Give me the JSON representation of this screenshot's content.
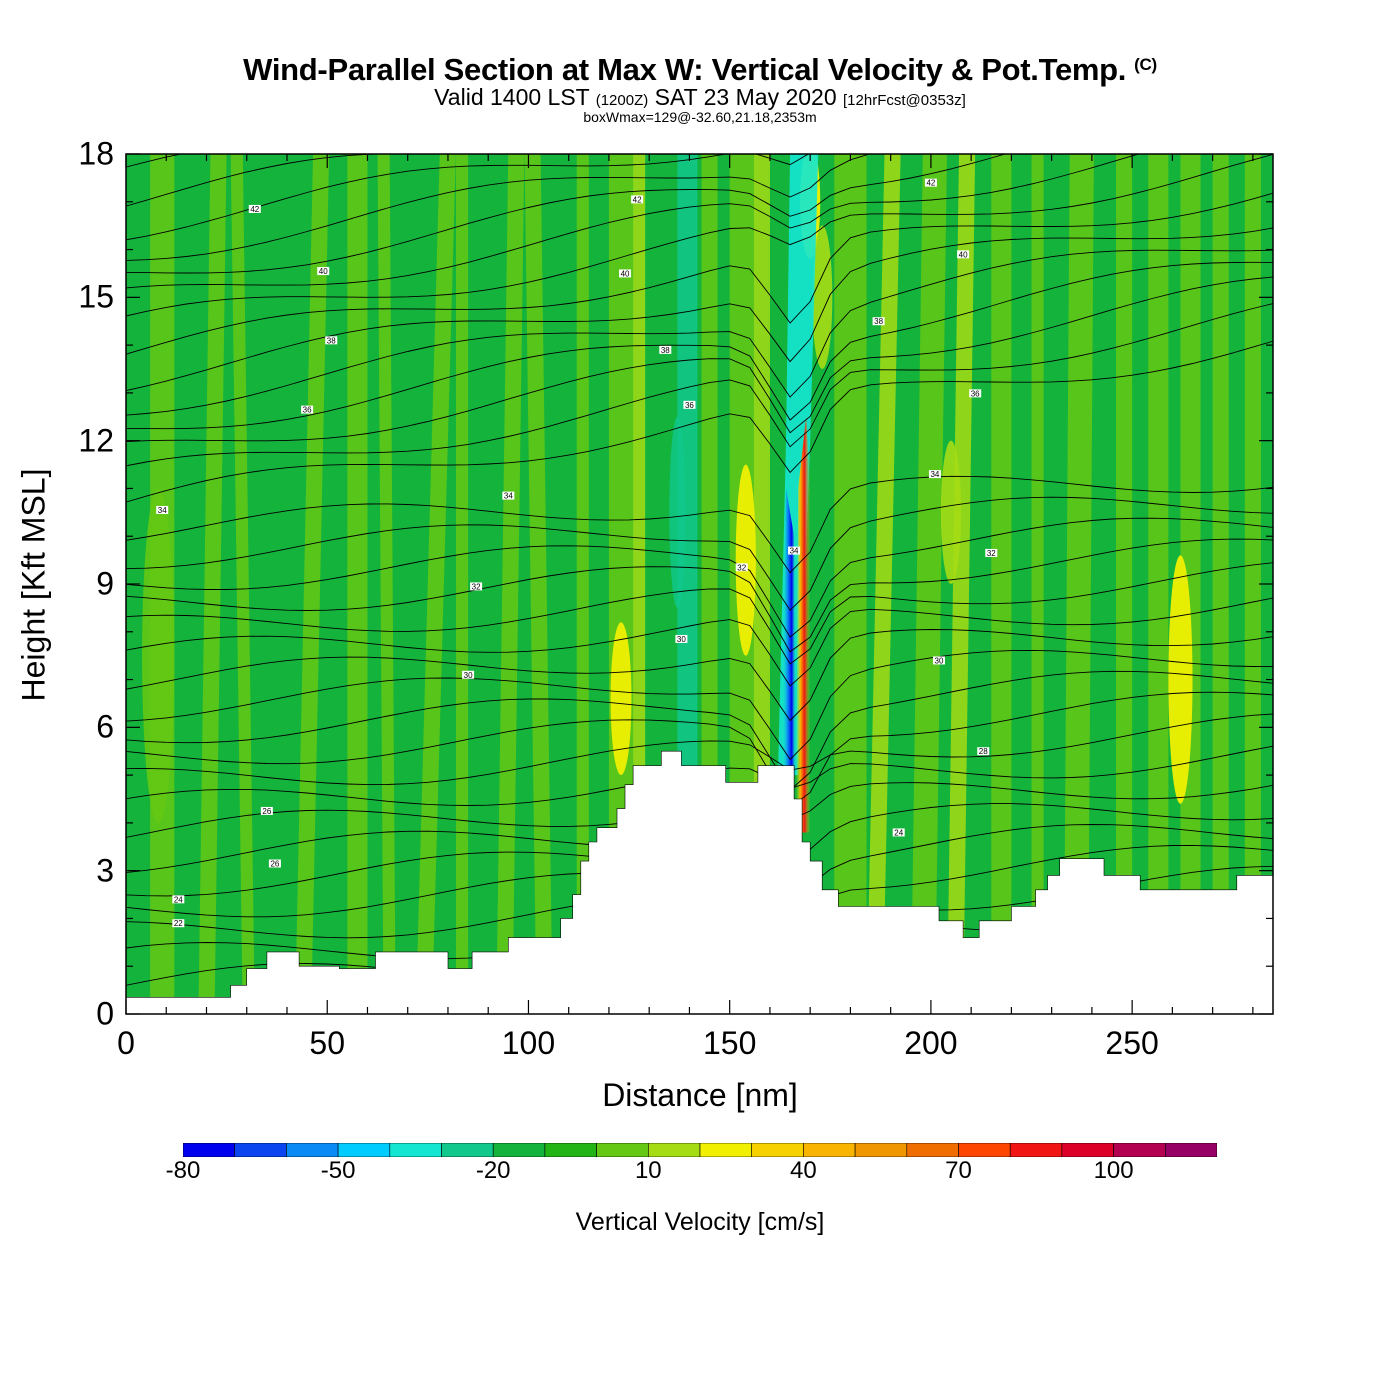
{
  "chart_data": {
    "type": "heatmap",
    "title": "Wind-Parallel Section at Max W: Vertical Velocity & Pot.Temp.",
    "title_mark": "(C)",
    "subtitle_parts": [
      "Valid 1400 LST",
      "(1200Z)",
      "SAT 23 May 2020",
      "[12hrFcst@0353z]"
    ],
    "box_info": "boxWmax=129@-32.60,21.18,2353m",
    "xlabel": "Distance [nm]",
    "ylabel": "Height [Kft MSL]",
    "xlim": [
      0,
      285
    ],
    "ylim": [
      0,
      18
    ],
    "xticks": [
      0,
      50,
      100,
      150,
      200,
      250
    ],
    "yticks": [
      0,
      3,
      6,
      9,
      12,
      15,
      18
    ],
    "colorbar": {
      "label": "Vertical Velocity [cm/s]",
      "levels": [
        -80,
        -70,
        -60,
        -50,
        -40,
        -30,
        -20,
        -10,
        0,
        10,
        20,
        30,
        40,
        50,
        60,
        70,
        80,
        90,
        100,
        110,
        120
      ],
      "colors": [
        "#0000ee",
        "#0b45f0",
        "#0a8af5",
        "#00ccff",
        "#14e6d2",
        "#10c88c",
        "#14b43c",
        "#22b414",
        "#64c814",
        "#a5dc14",
        "#f0f000",
        "#f8d200",
        "#f8b400",
        "#f09600",
        "#f06e00",
        "#ff4600",
        "#f01414",
        "#dc0028",
        "#b40050",
        "#960064"
      ],
      "tick_labels": [
        "-80",
        "-50",
        "-20",
        "10",
        "40",
        "70",
        "100"
      ],
      "tick_values": [
        -80,
        -50,
        -20,
        10,
        40,
        70,
        100
      ]
    },
    "terrain_kft": [
      [
        0,
        0.35
      ],
      [
        26,
        0.35
      ],
      [
        26,
        0.6
      ],
      [
        30,
        0.6
      ],
      [
        30,
        0.95
      ],
      [
        35,
        0.95
      ],
      [
        35,
        1.3
      ],
      [
        43,
        1.3
      ],
      [
        43,
        1.0
      ],
      [
        53,
        1.0
      ],
      [
        53,
        0.95
      ],
      [
        62,
        0.95
      ],
      [
        62,
        1.3
      ],
      [
        80,
        1.3
      ],
      [
        80,
        0.95
      ],
      [
        86,
        0.95
      ],
      [
        86,
        1.3
      ],
      [
        95,
        1.3
      ],
      [
        95,
        1.6
      ],
      [
        108,
        1.6
      ],
      [
        108,
        2.0
      ],
      [
        111,
        2.0
      ],
      [
        111,
        2.5
      ],
      [
        113,
        2.5
      ],
      [
        113,
        3.2
      ],
      [
        115,
        3.2
      ],
      [
        115,
        3.6
      ],
      [
        117,
        3.6
      ],
      [
        117,
        3.9
      ],
      [
        122,
        3.9
      ],
      [
        122,
        4.3
      ],
      [
        124,
        4.3
      ],
      [
        124,
        4.8
      ],
      [
        126,
        4.8
      ],
      [
        126,
        5.2
      ],
      [
        133,
        5.2
      ],
      [
        133,
        5.5
      ],
      [
        138,
        5.5
      ],
      [
        138,
        5.2
      ],
      [
        149,
        5.2
      ],
      [
        149,
        4.85
      ],
      [
        157,
        4.85
      ],
      [
        157,
        5.2
      ],
      [
        166,
        5.2
      ],
      [
        166,
        4.5
      ],
      [
        168,
        4.5
      ],
      [
        168,
        3.6
      ],
      [
        170,
        3.6
      ],
      [
        170,
        3.2
      ],
      [
        173,
        3.2
      ],
      [
        173,
        2.6
      ],
      [
        177,
        2.6
      ],
      [
        177,
        2.25
      ],
      [
        202,
        2.25
      ],
      [
        202,
        1.95
      ],
      [
        208,
        1.95
      ],
      [
        208,
        1.6
      ],
      [
        212,
        1.6
      ],
      [
        212,
        1.95
      ],
      [
        220,
        1.95
      ],
      [
        220,
        2.25
      ],
      [
        226,
        2.25
      ],
      [
        226,
        2.6
      ],
      [
        229,
        2.6
      ],
      [
        229,
        2.9
      ],
      [
        232,
        2.9
      ],
      [
        232,
        3.25
      ],
      [
        243,
        3.25
      ],
      [
        243,
        2.9
      ],
      [
        252,
        2.9
      ],
      [
        252,
        2.6
      ],
      [
        276,
        2.6
      ],
      [
        276,
        2.9
      ],
      [
        285,
        2.9
      ]
    ],
    "contour_labels": [
      {
        "x": 32,
        "y": 16.85,
        "text": "42"
      },
      {
        "x": 49,
        "y": 15.55,
        "text": "40"
      },
      {
        "x": 51,
        "y": 14.1,
        "text": "38"
      },
      {
        "x": 45,
        "y": 12.65,
        "text": "36"
      },
      {
        "x": 9,
        "y": 10.55,
        "text": "34"
      },
      {
        "x": 95,
        "y": 10.85,
        "text": "34"
      },
      {
        "x": 87,
        "y": 8.95,
        "text": "32"
      },
      {
        "x": 85,
        "y": 7.1,
        "text": "30"
      },
      {
        "x": 35,
        "y": 4.25,
        "text": "26"
      },
      {
        "x": 37,
        "y": 3.15,
        "text": "26"
      },
      {
        "x": 13,
        "y": 2.4,
        "text": "24"
      },
      {
        "x": 13,
        "y": 1.9,
        "text": "22"
      },
      {
        "x": 127,
        "y": 17.05,
        "text": "42"
      },
      {
        "x": 124,
        "y": 15.5,
        "text": "40"
      },
      {
        "x": 134,
        "y": 13.9,
        "text": "38"
      },
      {
        "x": 140,
        "y": 12.75,
        "text": "36"
      },
      {
        "x": 153,
        "y": 9.35,
        "text": "32"
      },
      {
        "x": 138,
        "y": 7.85,
        "text": "30"
      },
      {
        "x": 166,
        "y": 9.7,
        "text": "34"
      },
      {
        "x": 200,
        "y": 17.4,
        "text": "42"
      },
      {
        "x": 208,
        "y": 15.9,
        "text": "40"
      },
      {
        "x": 187,
        "y": 14.5,
        "text": "38"
      },
      {
        "x": 211,
        "y": 12.99,
        "text": "36"
      },
      {
        "x": 201,
        "y": 11.3,
        "text": "34"
      },
      {
        "x": 215,
        "y": 9.65,
        "text": "32"
      },
      {
        "x": 202,
        "y": 7.4,
        "text": "30"
      },
      {
        "x": 213,
        "y": 5.5,
        "text": "28"
      },
      {
        "x": 192,
        "y": 3.8,
        "text": "24"
      }
    ]
  }
}
